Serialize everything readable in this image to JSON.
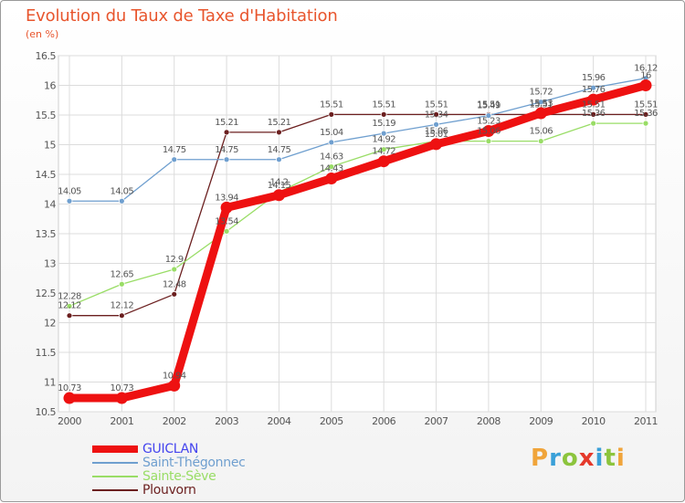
{
  "header": {
    "title": "Evolution du Taux de Taxe d'Habitation",
    "unit": "(en %)"
  },
  "logo": {
    "text": "Proxiti",
    "letters": [
      {
        "ch": "P",
        "color": "#f0a43a"
      },
      {
        "ch": "r",
        "color": "#3aa0d8"
      },
      {
        "ch": "o",
        "color": "#8cc43d"
      },
      {
        "ch": "x",
        "color": "#e5392b"
      },
      {
        "ch": "i",
        "color": "#3aa0d8"
      },
      {
        "ch": "t",
        "color": "#8cc43d"
      },
      {
        "ch": "i",
        "color": "#f0a43a"
      }
    ]
  },
  "chart_data": {
    "type": "line",
    "title": "Evolution du Taux de Taxe d'Habitation",
    "ylabel": "(en %)",
    "xlabel": "",
    "x": [
      "2000",
      "2001",
      "2002",
      "2003",
      "2004",
      "2005",
      "2006",
      "2007",
      "2008",
      "2009",
      "2010",
      "2011"
    ],
    "ylim": [
      10.5,
      16.5
    ],
    "yticks": [
      "10.5",
      "11",
      "11.5",
      "12",
      "12.5",
      "13",
      "13.5",
      "14",
      "14.5",
      "15",
      "15.5",
      "16",
      "16.5"
    ],
    "grid": true,
    "legend_position": "bottom-left",
    "series": [
      {
        "name": "GUICLAN",
        "color": "#ee1111",
        "text_color": "#4444ee",
        "values": [
          10.73,
          10.73,
          10.94,
          13.94,
          14.15,
          14.43,
          14.72,
          15.01,
          15.23,
          15.53,
          15.76,
          16.0
        ],
        "labels": [
          "10.73",
          "10.73",
          "10.94",
          "13.94",
          "14.15",
          "14.43",
          "14.72",
          "15.01",
          "15.23",
          "15.53",
          "15.76",
          "16"
        ]
      },
      {
        "name": "Saint-Thégonnec",
        "color": "#6f9fcf",
        "text_color": "#6f9fcf",
        "values": [
          14.05,
          14.05,
          14.75,
          14.75,
          14.75,
          15.04,
          15.19,
          15.34,
          15.49,
          15.72,
          15.96,
          16.12
        ],
        "labels": [
          "14.05",
          "14.05",
          "14.75",
          "14.75",
          "14.75",
          "15.04",
          "15.19",
          "15.34",
          "15.49",
          "15.72",
          "15.96",
          "16.12"
        ]
      },
      {
        "name": "Sainte-Sève",
        "color": "#99dd66",
        "text_color": "#99dd66",
        "values": [
          12.28,
          12.65,
          12.9,
          13.54,
          14.2,
          14.63,
          14.92,
          15.06,
          15.06,
          15.06,
          15.36,
          15.36
        ],
        "labels": [
          "12.28",
          "12.65",
          "12.9",
          "13.54",
          "14.2",
          "14.63",
          "14.92",
          "15.06",
          "15.06",
          "15.06",
          "15.36",
          "15.36"
        ]
      },
      {
        "name": "Plouvorn",
        "color": "#6b1f1f",
        "text_color": "#6b1f1f",
        "values": [
          12.12,
          12.12,
          12.48,
          15.21,
          15.21,
          15.51,
          15.51,
          15.51,
          15.51,
          15.51,
          15.51,
          15.51
        ],
        "labels": [
          "12.12",
          "12.12",
          "12.48",
          "15.21",
          "15.21",
          "15.51",
          "15.51",
          "15.51",
          "15.51",
          "15.51",
          "15.51",
          "15.51"
        ]
      }
    ]
  }
}
